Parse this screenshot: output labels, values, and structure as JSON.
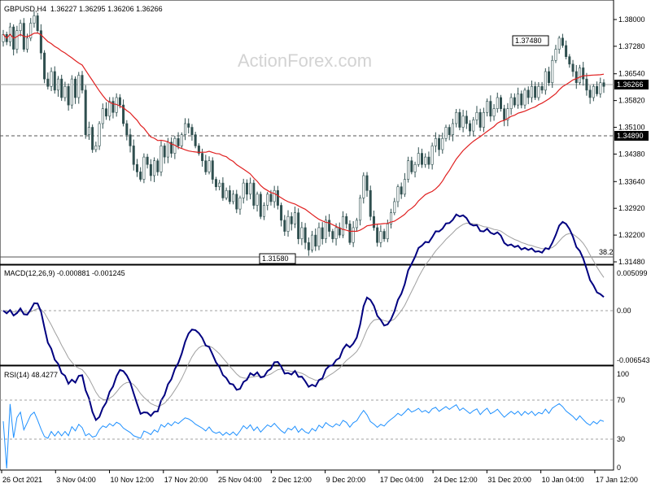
{
  "header": {
    "symbol": "GBPUSD,H4",
    "ohlc": "1.36227 1.36295 1.36206 1.36266"
  },
  "watermark": "ActionForex.com",
  "colors": {
    "candle": "#2f4f4f",
    "ma": "#e02020",
    "macd": "#000080",
    "signal": "#a0a0a0",
    "rsi": "#1e90ff",
    "grid_dash": "#808080",
    "border": "#000000"
  },
  "chart_data": [
    {
      "type": "candlestick",
      "name": "price",
      "ylim": [
        1.3148,
        1.3835
      ],
      "yticks": [
        "1.38000",
        "1.37280",
        "1.36540",
        "1.35820",
        "1.35100",
        "1.34380",
        "1.33640",
        "1.32920",
        "1.32200",
        "1.31480"
      ],
      "current_price": "1.36266",
      "support_level": "1.34890",
      "fib_label": "38.2",
      "annotations": [
        {
          "label": "1.37480",
          "value": 1.3748,
          "position": "high"
        },
        {
          "label": "1.31580",
          "value": 1.3158,
          "position": "low"
        }
      ],
      "closes": [
        1.376,
        1.374,
        1.378,
        1.372,
        1.377,
        1.379,
        1.372,
        1.375,
        1.379,
        1.381,
        1.377,
        1.371,
        1.364,
        1.362,
        1.366,
        1.361,
        1.364,
        1.359,
        1.362,
        1.357,
        1.364,
        1.359,
        1.365,
        1.361,
        1.349,
        1.351,
        1.345,
        1.346,
        1.352,
        1.356,
        1.354,
        1.358,
        1.355,
        1.359,
        1.357,
        1.352,
        1.349,
        1.346,
        1.341,
        1.339,
        1.337,
        1.343,
        1.341,
        1.338,
        1.342,
        1.339,
        1.346,
        1.343,
        1.347,
        1.344,
        1.348,
        1.346,
        1.349,
        1.352,
        1.351,
        1.349,
        1.346,
        1.344,
        1.342,
        1.339,
        1.342,
        1.337,
        1.335,
        1.336,
        1.332,
        1.334,
        1.331,
        1.333,
        1.329,
        1.332,
        1.336,
        1.333,
        1.336,
        1.33,
        1.333,
        1.327,
        1.33,
        1.333,
        1.331,
        1.334,
        1.33,
        1.326,
        1.323,
        1.327,
        1.325,
        1.328,
        1.321,
        1.324,
        1.32,
        1.318,
        1.322,
        1.319,
        1.324,
        1.321,
        1.326,
        1.323,
        1.321,
        1.324,
        1.322,
        1.327,
        1.325,
        1.32,
        1.324,
        1.326,
        1.332,
        1.338,
        1.334,
        1.327,
        1.324,
        1.32,
        1.323,
        1.321,
        1.325,
        1.328,
        1.331,
        1.335,
        1.333,
        1.337,
        1.342,
        1.339,
        1.341,
        1.344,
        1.341,
        1.343,
        1.341,
        1.346,
        1.348,
        1.345,
        1.348,
        1.351,
        1.349,
        1.352,
        1.355,
        1.351,
        1.354,
        1.352,
        1.35,
        1.353,
        1.355,
        1.351,
        1.355,
        1.358,
        1.354,
        1.356,
        1.359,
        1.356,
        1.353,
        1.356,
        1.359,
        1.357,
        1.36,
        1.357,
        1.361,
        1.359,
        1.362,
        1.359,
        1.362,
        1.361,
        1.366,
        1.363,
        1.369,
        1.372,
        1.375,
        1.373,
        1.37,
        1.368,
        1.366,
        1.363,
        1.367,
        1.364,
        1.361,
        1.359,
        1.362,
        1.36,
        1.363,
        1.362
      ],
      "ma_label": "MA"
    },
    {
      "type": "line",
      "name": "MACD",
      "title": "MACD(12,26,9) -0.000881 -0.001245",
      "ylim": [
        -0.00654,
        0.0051
      ],
      "yticks": [
        "0.005099",
        "0.00",
        "-0.006543"
      ]
    },
    {
      "type": "line",
      "name": "RSI",
      "title": "RSI(14) 48.4277",
      "ylim": [
        0,
        100
      ],
      "yticks": [
        "100",
        "70",
        "30",
        "0"
      ]
    }
  ],
  "x_axis": {
    "labels": [
      "26 Oct 2021",
      "3 Nov 04:00",
      "10 Nov 12:00",
      "17 Nov 20:00",
      "25 Nov 04:00",
      "2 Dec 12:00",
      "9 Dec 20:00",
      "17 Dec 04:00",
      "24 Dec 12:00",
      "31 Dec 20:00",
      "10 Jan 04:00",
      "17 Jan 12:00"
    ]
  }
}
